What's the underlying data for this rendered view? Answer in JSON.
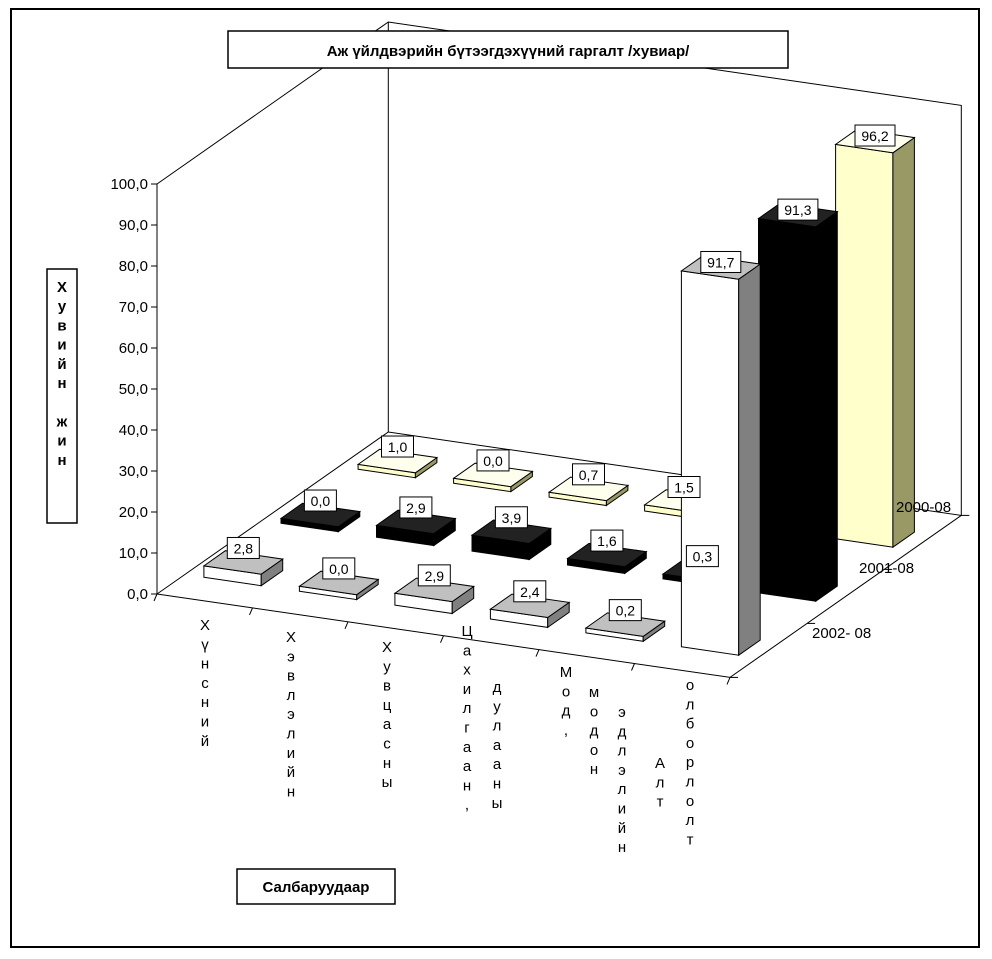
{
  "chart_data": {
    "type": "bar",
    "title": "Аж үйлдвэрийн бүтээгдэхүүний гаргалт /хувиар/",
    "ylabel": "Хувийн жин",
    "xlabel": "Салбаруудаар",
    "ylim": [
      0,
      100
    ],
    "yticks": [
      "0,0",
      "10,0",
      "20,0",
      "30,0",
      "40,0",
      "50,0",
      "60,0",
      "70,0",
      "80,0",
      "90,0",
      "100,0"
    ],
    "categories": [
      [
        "Хүнсний"
      ],
      [
        "Хэвлэлийн"
      ],
      [
        "Хувцасны"
      ],
      [
        "Цахилгаан,",
        "дулааны"
      ],
      [
        "Мод,",
        "модон",
        "эдлэлийн"
      ],
      [
        "Алт",
        "олборлолт"
      ]
    ],
    "series": [
      {
        "name": "2000-08",
        "values": [
          1.0,
          0.0,
          0.7,
          1.5,
          0.2,
          96.2
        ],
        "labels": [
          "1,0",
          "0,0",
          "0,7",
          "1,5",
          "",
          "96,2"
        ],
        "front": "#ffffcc",
        "top": "#ffffee",
        "side": "#999966"
      },
      {
        "name": "2001-08",
        "values": [
          0.0,
          2.9,
          3.9,
          1.6,
          0.3,
          91.3
        ],
        "labels": [
          "0,0",
          "2,9",
          "3,9",
          "1,6",
          "0,3",
          "91,3"
        ],
        "front": "#000000",
        "top": "#222222",
        "side": "#000000"
      },
      {
        "name": "2002- 08",
        "values": [
          2.8,
          0.0,
          2.9,
          2.4,
          0.2,
          91.7
        ],
        "labels": [
          "2,8",
          "0,0",
          "2,9",
          "2,4",
          "0,2",
          "91,7"
        ],
        "front": "#ffffff",
        "top": "#c0c0c0",
        "side": "#808080"
      }
    ],
    "grid": false
  }
}
